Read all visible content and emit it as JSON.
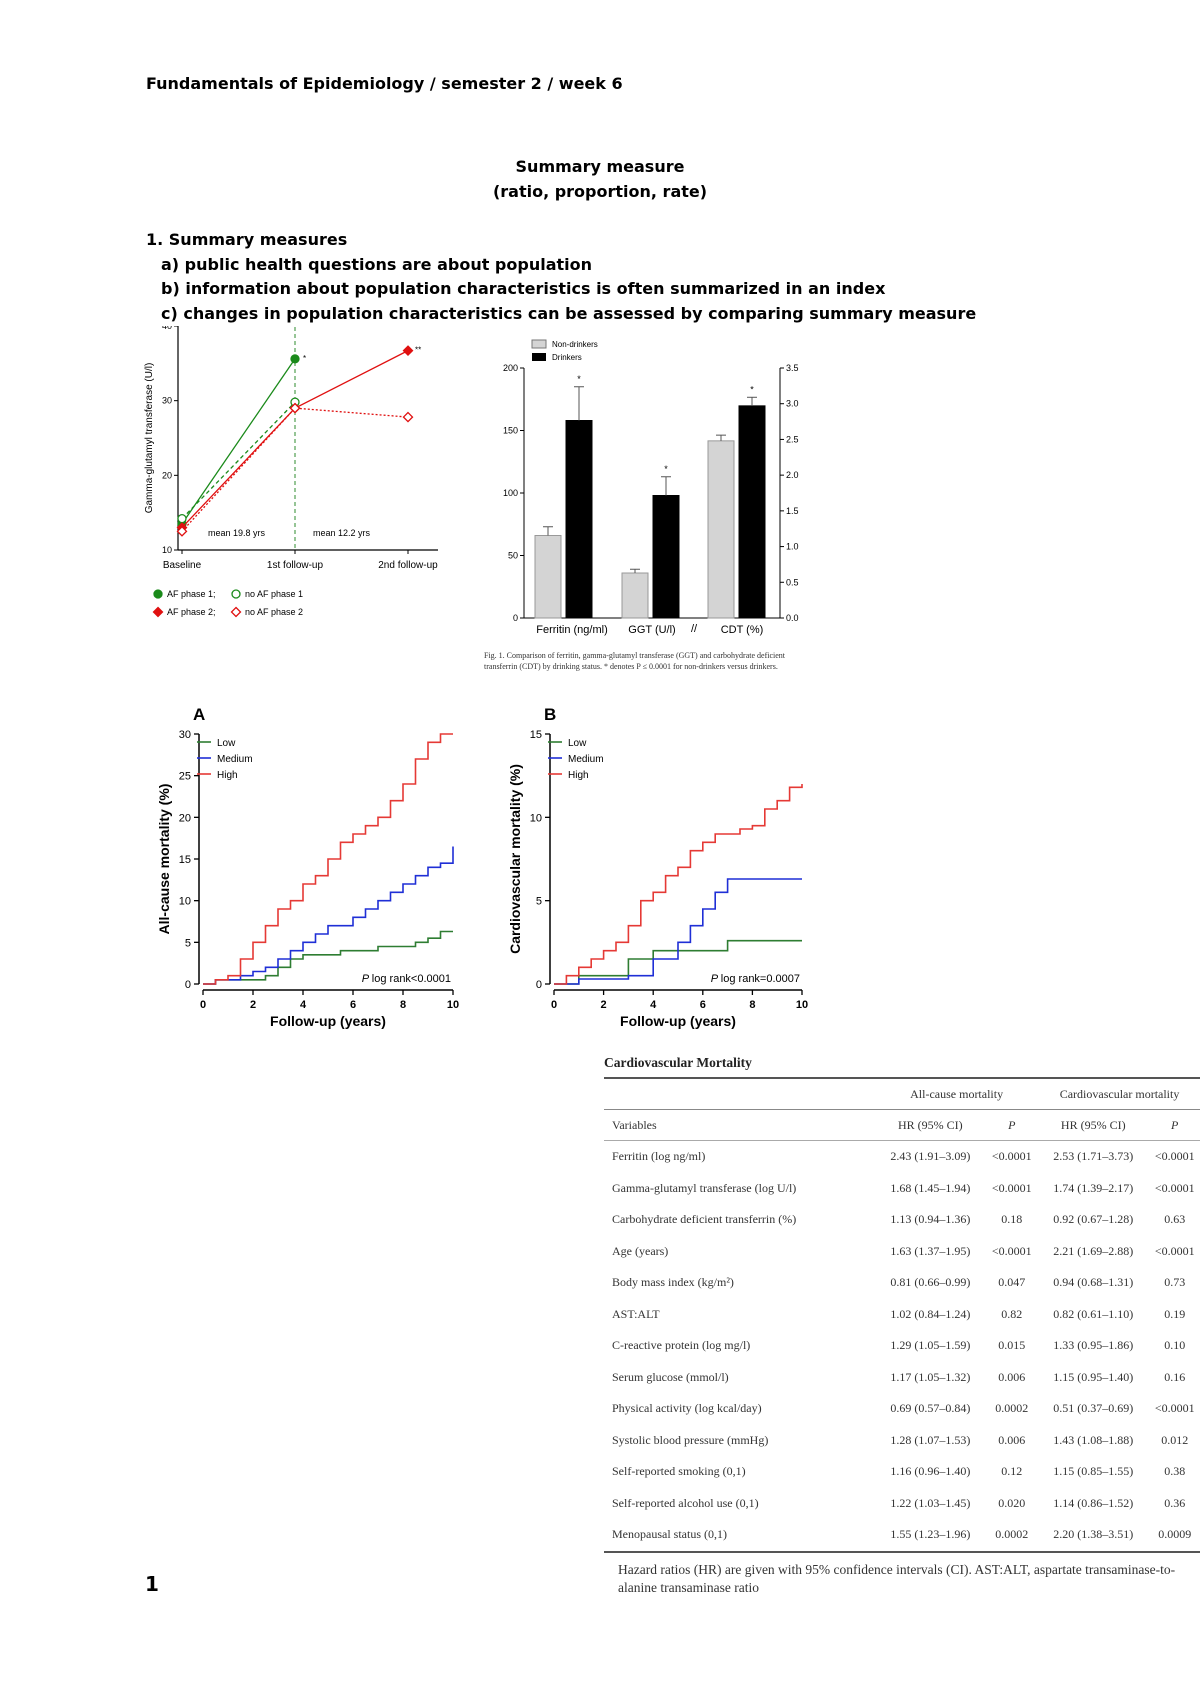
{
  "header": "Fundamentals of Epidemiology / semester 2 / week 6",
  "title_line1": "Summary measure",
  "title_line2": "(ratio, proportion, rate)",
  "section": {
    "heading": "1. Summary measures",
    "items": [
      "a) public health questions are about population",
      "b) information about population characteristics is often summarized in an index",
      "c) changes in population characteristics can be assessed by comparing summary measure"
    ]
  },
  "chart_data": [
    {
      "type": "line",
      "title": "",
      "phase_labels": [
        "Phase 1",
        "Phase 2"
      ],
      "ylabel": "Gamma-glutamyl transferase (U/l)",
      "ylim": [
        10,
        40
      ],
      "yticks": [
        "10",
        "20",
        "30",
        "40"
      ],
      "categories": [
        "Baseline",
        "1st follow-up",
        "2nd follow-up"
      ],
      "annotations": [
        "mean 19.8 yrs",
        "mean 12.2 yrs",
        "*",
        "**"
      ],
      "legend": [
        "AF phase 1;",
        "no AF phase 1",
        "AF phase 2;",
        "no AF phase 2"
      ],
      "series": [
        {
          "name": "AF phase 1",
          "values": [
            13.5,
            35.6,
            null
          ],
          "color": "#1a8a1a"
        },
        {
          "name": "no AF phase 1",
          "values": [
            14.2,
            29.8,
            null
          ],
          "color": "#1a8a1a"
        },
        {
          "name": "AF phase 2",
          "values": [
            13.0,
            29.0,
            36.7
          ],
          "color": "#e01010"
        },
        {
          "name": "no AF phase 2",
          "values": [
            12.5,
            29.0,
            27.8
          ],
          "color": "#e01010"
        }
      ]
    },
    {
      "type": "bar",
      "legend": [
        "Non-drinkers",
        "Drinkers"
      ],
      "categories": [
        "Ferritin (ng/ml)",
        "GGT (U/l)",
        "CDT (%)"
      ],
      "ylim_left": [
        0,
        200
      ],
      "yticks_left": [
        "0",
        "50",
        "100",
        "150",
        "200"
      ],
      "ylim_right": [
        0,
        3.5
      ],
      "yticks_right": [
        "0.0",
        "0.5",
        "1.0",
        "1.5",
        "2.0",
        "2.5",
        "3.0",
        "3.5"
      ],
      "series": [
        {
          "name": "Non-drinkers",
          "values": [
            66,
            36,
            2.48
          ],
          "errors": [
            7,
            3,
            0.08
          ],
          "color": "#d4d4d4"
        },
        {
          "name": "Drinkers",
          "values": [
            158,
            98,
            2.97
          ],
          "errors": [
            27,
            15,
            0.12
          ],
          "color": "#000000"
        }
      ],
      "significance": [
        "*",
        "*",
        "*"
      ],
      "break_mark": "//",
      "caption": "Fig. 1. Comparison of ferritin, gamma-glutamyl transferase (GGT) and carbohydrate deficient transferrin (CDT) by drinking status. * denotes P ≤ 0.0001 for non-drinkers versus drinkers."
    },
    {
      "type": "line",
      "panel": "A",
      "ylabel": "All-cause mortality (%)",
      "xlabel": "Follow-up (years)",
      "xlim": [
        0,
        10
      ],
      "ylim": [
        0,
        30
      ],
      "xticks": [
        "0",
        "2",
        "4",
        "6",
        "8",
        "10"
      ],
      "yticks": [
        "0",
        "5",
        "10",
        "15",
        "20",
        "25",
        "30"
      ],
      "pvalue": "log rank<0.0001",
      "pvalue_prefix": "P",
      "legend": [
        "Low",
        "Medium",
        "High"
      ],
      "series": [
        {
          "name": "Low",
          "color": "#2e7d32",
          "x": [
            0,
            0.5,
            1.5,
            2.5,
            3,
            3.5,
            4,
            5,
            5.5,
            6,
            6.5,
            7,
            7.5,
            8,
            8.5,
            9,
            9.5,
            10
          ],
          "y": [
            0,
            0.5,
            0.5,
            1,
            2,
            3,
            3.5,
            3.5,
            4,
            4,
            4,
            4.5,
            4.5,
            4.5,
            5,
            5.5,
            6.3,
            6.3
          ]
        },
        {
          "name": "Medium",
          "color": "#1f2fd6",
          "x": [
            0,
            0.5,
            1,
            1.5,
            2,
            2.5,
            3,
            3.5,
            4,
            4.5,
            5,
            5.5,
            6,
            6.5,
            7,
            7.5,
            8,
            8.5,
            9,
            9.5,
            10
          ],
          "y": [
            0,
            0.5,
            0.5,
            1,
            1.5,
            2,
            3,
            4,
            5,
            6,
            7,
            7,
            8,
            9,
            10,
            11,
            12,
            13,
            14,
            14.5,
            16.5
          ]
        },
        {
          "name": "High",
          "color": "#e53935",
          "x": [
            0,
            0.5,
            1,
            1.5,
            2,
            2.5,
            3,
            3.5,
            4,
            4.5,
            5,
            5.5,
            6,
            6.5,
            7,
            7.5,
            8,
            8.5,
            9,
            9.5,
            10
          ],
          "y": [
            0,
            0.5,
            1,
            3,
            5,
            7,
            9,
            10,
            12,
            13,
            15,
            17,
            18,
            19,
            20,
            22,
            24,
            27,
            29,
            30,
            30
          ]
        }
      ]
    },
    {
      "type": "line",
      "panel": "B",
      "ylabel": "Cardiovascular mortality (%)",
      "xlabel": "Follow-up (years)",
      "xlim": [
        0,
        10
      ],
      "ylim": [
        0,
        15
      ],
      "xticks": [
        "0",
        "2",
        "4",
        "6",
        "8",
        "10"
      ],
      "yticks": [
        "0",
        "5",
        "10",
        "15"
      ],
      "pvalue": "log rank=0.0007",
      "pvalue_prefix": "P",
      "legend": [
        "Low",
        "Medium",
        "High"
      ],
      "series": [
        {
          "name": "Low",
          "color": "#2e7d32",
          "x": [
            0,
            1,
            2,
            3,
            4,
            5,
            6,
            7,
            8,
            9,
            10
          ],
          "y": [
            0,
            0.5,
            0.5,
            1.5,
            2,
            2,
            2,
            2.6,
            2.6,
            2.6,
            2.6
          ]
        },
        {
          "name": "Medium",
          "color": "#1f2fd6",
          "x": [
            0,
            1,
            2,
            3,
            4,
            5,
            5.5,
            6,
            6.5,
            7,
            7.5,
            8,
            9,
            10
          ],
          "y": [
            0,
            0.3,
            0.3,
            0.5,
            1.5,
            2.5,
            3.5,
            4.5,
            5.5,
            6.3,
            6.3,
            6.3,
            6.3,
            6.3
          ]
        },
        {
          "name": "High",
          "color": "#e53935",
          "x": [
            0,
            0.5,
            1,
            1.5,
            2,
            2.5,
            3,
            3.5,
            4,
            4.5,
            5,
            5.5,
            6,
            6.5,
            7,
            7.5,
            8,
            8.5,
            9,
            9.5,
            10
          ],
          "y": [
            0,
            0.5,
            1,
            1.5,
            2,
            2.5,
            3.5,
            5,
            5.5,
            6.5,
            7,
            8,
            8.5,
            9,
            9,
            9.3,
            9.5,
            10.5,
            11,
            11.8,
            12
          ]
        }
      ]
    }
  ],
  "table": {
    "title": "Cardiovascular Mortality",
    "group_headers": [
      "All-cause mortality",
      "Cardiovascular mortality"
    ],
    "col_headers": [
      "Variables",
      "HR (95% CI)",
      "P",
      "HR (95% CI)",
      "P"
    ],
    "rows": [
      [
        "Ferritin (log ng/ml)",
        "2.43 (1.91–3.09)",
        "<0.0001",
        "2.53 (1.71–3.73)",
        "<0.0001"
      ],
      [
        "Gamma-glutamyl transferase (log U/l)",
        "1.68 (1.45–1.94)",
        "<0.0001",
        "1.74 (1.39–2.17)",
        "<0.0001"
      ],
      [
        "Carbohydrate deficient transferrin (%)",
        "1.13 (0.94–1.36)",
        "0.18",
        "0.92 (0.67–1.28)",
        "0.63"
      ],
      [
        "Age (years)",
        "1.63 (1.37–1.95)",
        "<0.0001",
        "2.21 (1.69–2.88)",
        "<0.0001"
      ],
      [
        "Body mass index (kg/m²)",
        "0.81 (0.66–0.99)",
        "0.047",
        "0.94 (0.68–1.31)",
        "0.73"
      ],
      [
        "AST:ALT",
        "1.02 (0.84–1.24)",
        "0.82",
        "0.82 (0.61–1.10)",
        "0.19"
      ],
      [
        "C-reactive protein (log mg/l)",
        "1.29 (1.05–1.59)",
        "0.015",
        "1.33 (0.95–1.86)",
        "0.10"
      ],
      [
        "Serum glucose (mmol/l)",
        "1.17 (1.05–1.32)",
        "0.006",
        "1.15 (0.95–1.40)",
        "0.16"
      ],
      [
        "Physical activity (log kcal/day)",
        "0.69 (0.57–0.84)",
        "0.0002",
        "0.51 (0.37–0.69)",
        "<0.0001"
      ],
      [
        "Systolic blood pressure (mmHg)",
        "1.28 (1.07–1.53)",
        "0.006",
        "1.43 (1.08–1.88)",
        "0.012"
      ],
      [
        "Self-reported smoking (0,1)",
        "1.16 (0.96–1.40)",
        "0.12",
        "1.15 (0.85–1.55)",
        "0.38"
      ],
      [
        "Self-reported alcohol use (0,1)",
        "1.22 (1.03–1.45)",
        "0.020",
        "1.14 (0.86–1.52)",
        "0.36"
      ],
      [
        "Menopausal status (0,1)",
        "1.55 (1.23–1.96)",
        "0.0002",
        "2.20 (1.38–3.51)",
        "0.0009"
      ]
    ],
    "footnote": "Hazard ratios (HR) are given with 95% confidence intervals (CI). AST:ALT, aspartate transaminase-to-alanine transaminase ratio"
  },
  "page_number": "1"
}
